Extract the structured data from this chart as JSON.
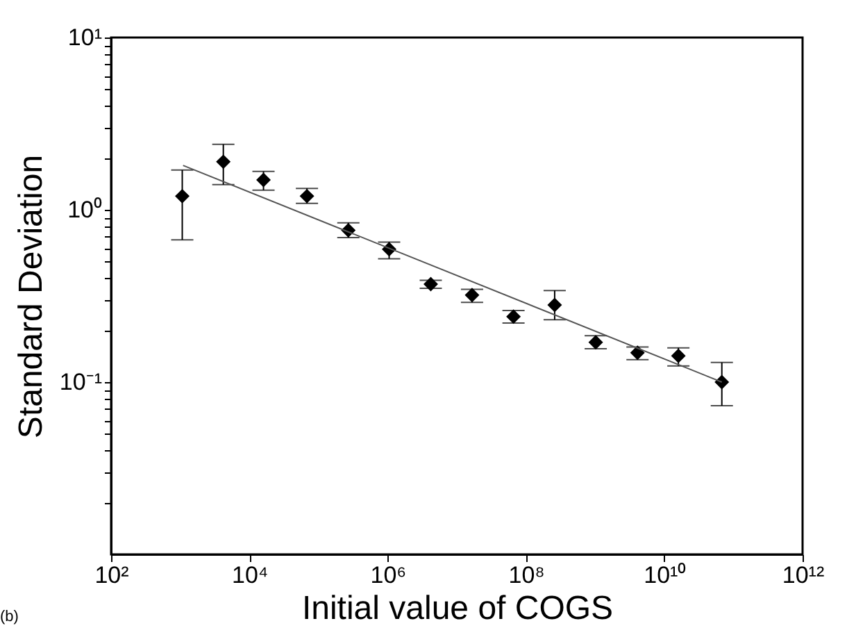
{
  "chart_data": {
    "type": "scatter",
    "xlabel": "Initial value of COGS",
    "ylabel": "Standard Deviation",
    "annotations": [
      "(b)"
    ],
    "log": "xy",
    "grid": false,
    "legend": false,
    "marker": "diamond",
    "xlim": [
      100,
      1000000000000
    ],
    "ylim": [
      0.01,
      10
    ],
    "xticks": [
      {
        "value": 100,
        "label": "10²"
      },
      {
        "value": 10000,
        "label": "10⁴"
      },
      {
        "value": 1000000,
        "label": "10⁶"
      },
      {
        "value": 100000000,
        "label": "10⁸"
      },
      {
        "value": 10000000000,
        "label": "10¹⁰"
      },
      {
        "value": 1000000000000,
        "label": "10¹²"
      }
    ],
    "yticks": [
      {
        "value": 0.02,
        "label": null
      },
      {
        "value": 0.03,
        "label": null
      },
      {
        "value": 0.04,
        "label": null
      },
      {
        "value": 0.05,
        "label": null
      },
      {
        "value": 0.06,
        "label": null
      },
      {
        "value": 0.07,
        "label": null
      },
      {
        "value": 0.08,
        "label": null
      },
      {
        "value": 0.09,
        "label": null
      },
      {
        "value": 0.1,
        "label": "10⁻¹"
      },
      {
        "value": 0.2,
        "label": null
      },
      {
        "value": 0.3,
        "label": null
      },
      {
        "value": 0.4,
        "label": null
      },
      {
        "value": 0.5,
        "label": null
      },
      {
        "value": 0.6,
        "label": null
      },
      {
        "value": 0.7,
        "label": null
      },
      {
        "value": 0.8,
        "label": null
      },
      {
        "value": 0.9,
        "label": null
      },
      {
        "value": 1,
        "label": "10⁰"
      },
      {
        "value": 2,
        "label": null
      },
      {
        "value": 3,
        "label": null
      },
      {
        "value": 4,
        "label": null
      },
      {
        "value": 5,
        "label": null
      },
      {
        "value": 6,
        "label": null
      },
      {
        "value": 7,
        "label": null
      },
      {
        "value": 8,
        "label": null
      },
      {
        "value": 9,
        "label": null
      },
      {
        "value": 10,
        "label": "10¹"
      }
    ],
    "series": [
      {
        "color": "#000000",
        "x": [
          1070,
          4200,
          16000,
          68000,
          270000,
          1050000,
          4200000,
          16600000,
          66000000,
          260000000,
          1020000000,
          4100000000,
          16000000000,
          68000000000
        ],
        "values": [
          1.2,
          1.9,
          1.49,
          1.2,
          0.76,
          0.59,
          0.37,
          0.32,
          0.24,
          0.28,
          0.17,
          0.148,
          0.142,
          0.1
        ],
        "errors": [
          [
            0.67,
            1.7
          ],
          [
            1.4,
            2.4
          ],
          [
            1.3,
            1.67
          ],
          [
            1.09,
            1.33
          ],
          [
            0.69,
            0.84
          ],
          [
            0.52,
            0.65
          ],
          [
            0.35,
            0.39
          ],
          [
            0.29,
            0.345
          ],
          [
            0.22,
            0.26
          ],
          [
            0.23,
            0.34
          ],
          [
            0.156,
            0.186
          ],
          [
            0.135,
            0.16
          ],
          [
            0.124,
            0.158
          ],
          [
            0.073,
            0.13
          ]
        ]
      },
      {
        "type": "line",
        "color": "#555555",
        "line_style": "solid",
        "marker": "none",
        "x": [
          1100,
          68000000000
        ],
        "values": [
          1.81,
          0.1
        ]
      }
    ]
  }
}
